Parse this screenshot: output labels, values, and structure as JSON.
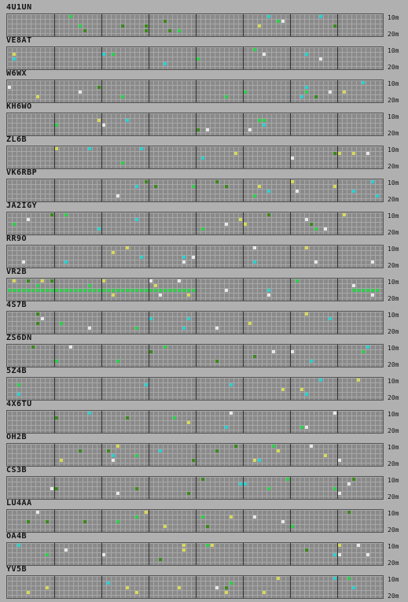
{
  "stations": [
    {
      "call": "4U1UN"
    },
    {
      "call": "VE8AT"
    },
    {
      "call": "W6WX"
    },
    {
      "call": "KH6WO"
    },
    {
      "call": "ZL6B"
    },
    {
      "call": "VK6RBP"
    },
    {
      "call": "JA2IGY"
    },
    {
      "call": "RR9O"
    },
    {
      "call": "VR2B"
    },
    {
      "call": "4S7B"
    },
    {
      "call": "ZS6DN"
    },
    {
      "call": "5Z4B"
    },
    {
      "call": "4X6TU"
    },
    {
      "call": "OH2B"
    },
    {
      "call": "CS3B"
    },
    {
      "call": "LU4AA"
    },
    {
      "call": "OA4B"
    },
    {
      "call": "YV5B"
    }
  ],
  "band_labels": {
    "top": "10m",
    "bottom": "20m"
  },
  "colors": {
    "background": "#b0b0b0",
    "grid_fill": "#8a8a8a",
    "yellow": "#d8d85a",
    "green": "#2bd04a",
    "cyan": "#2ad0d0",
    "white": "#e8e8e8",
    "dark_green": "#3a8a1a"
  }
}
